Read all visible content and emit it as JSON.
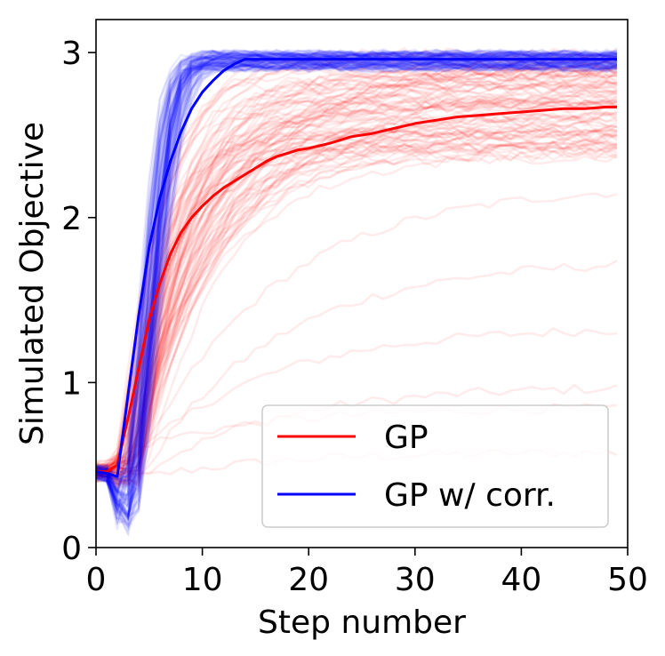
{
  "chart_data": {
    "type": "line",
    "title": "",
    "xlabel": "Step number",
    "ylabel": "Simulated Objective",
    "xlim": [
      0,
      50
    ],
    "ylim": [
      0,
      3.2
    ],
    "xticks": [
      0,
      10,
      20,
      30,
      40,
      50
    ],
    "yticks": [
      0,
      1,
      2,
      3
    ],
    "grid": false,
    "legend_position": "bottom-right",
    "colors": {
      "gp": "#ff0000",
      "gp_corr": "#0000ff",
      "axes": "#000000"
    },
    "series": [
      {
        "name": "GP",
        "color": "#ff0000",
        "x": [
          0,
          1,
          2,
          3,
          4,
          5,
          6,
          7,
          8,
          9,
          10,
          11,
          12,
          13,
          14,
          15,
          16,
          17,
          18,
          19,
          20,
          22,
          24,
          26,
          28,
          30,
          32,
          34,
          36,
          38,
          40,
          42,
          44,
          46,
          48,
          49
        ],
        "values": [
          0.46,
          0.46,
          0.5,
          0.78,
          1.08,
          1.38,
          1.6,
          1.78,
          1.91,
          2.0,
          2.07,
          2.13,
          2.18,
          2.22,
          2.26,
          2.3,
          2.34,
          2.37,
          2.39,
          2.41,
          2.42,
          2.45,
          2.49,
          2.51,
          2.54,
          2.57,
          2.59,
          2.61,
          2.62,
          2.63,
          2.64,
          2.65,
          2.66,
          2.66,
          2.67,
          2.67
        ]
      },
      {
        "name": "GP w/ corr.",
        "color": "#0000ff",
        "x": [
          0,
          1,
          2,
          3,
          4,
          5,
          6,
          7,
          8,
          9,
          10,
          11,
          12,
          13,
          14,
          16,
          20,
          30,
          40,
          49
        ],
        "values": [
          0.46,
          0.45,
          0.43,
          0.92,
          1.4,
          1.82,
          2.12,
          2.34,
          2.52,
          2.66,
          2.76,
          2.83,
          2.89,
          2.93,
          2.96,
          2.96,
          2.96,
          2.96,
          2.96,
          2.96
        ]
      }
    ],
    "background_runs": {
      "description_hidden": true,
      "gp_runs": 100,
      "gp_corr_runs": 100
    }
  }
}
